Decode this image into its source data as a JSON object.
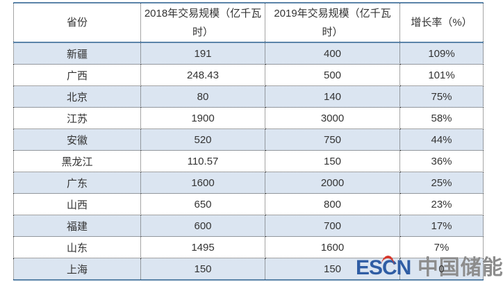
{
  "chart_data": {
    "type": "table",
    "columns": [
      "省份",
      "2018年交易规模（亿千瓦时）",
      "2019年交易规模（亿千瓦时）",
      "增长率（%）"
    ],
    "rows": [
      [
        "新疆",
        "191",
        "400",
        "109%"
      ],
      [
        "广西",
        "248.43",
        "500",
        "101%"
      ],
      [
        "北京",
        "80",
        "140",
        "75%"
      ],
      [
        "江苏",
        "1900",
        "3000",
        "58%"
      ],
      [
        "安徽",
        "520",
        "750",
        "44%"
      ],
      [
        "黑龙江",
        "110.57",
        "150",
        "36%"
      ],
      [
        "广东",
        "1600",
        "2000",
        "25%"
      ],
      [
        "山西",
        "650",
        "800",
        "23%"
      ],
      [
        "福建",
        "600",
        "700",
        "17%"
      ],
      [
        "山东",
        "1495",
        "1600",
        "7%"
      ],
      [
        "上海",
        "150",
        "150",
        "0"
      ]
    ],
    "layout": {
      "alternating_row_fill": "even rows (1st, 3rd, ...) light blue",
      "grid": "dotted inner borders, solid accent top/header/bottom rules"
    }
  },
  "watermark": {
    "logo_text": "ESCN",
    "site_text": "中国储能网"
  },
  "colors": {
    "accent_border": "#5b84a9",
    "row_alt_bg": "#dbe5f1",
    "cell_text": "#333333",
    "watermark_blue": "#2f5da4",
    "watermark_red": "#d6382b",
    "watermark_gray": "#8c8c8c"
  }
}
